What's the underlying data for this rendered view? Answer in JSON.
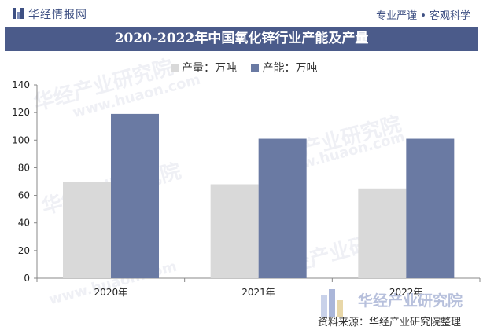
{
  "header": {
    "brand": "华经情报网",
    "tagline": "专业严谨 • 客观科学"
  },
  "chart_data": {
    "type": "bar",
    "title": "2020-2022年中国氧化锌行业产能及产量",
    "categories": [
      "2020年",
      "2021年",
      "2022年"
    ],
    "series": [
      {
        "name": "产量：万吨",
        "color": "#d9d9d9",
        "values": [
          70,
          68,
          65
        ]
      },
      {
        "name": "产能：万吨",
        "color": "#6a7aa3",
        "values": [
          119,
          101,
          101
        ]
      }
    ],
    "ylim": [
      0,
      140
    ],
    "yticks": [
      "0",
      "20",
      "40",
      "60",
      "80",
      "100",
      "120",
      "140"
    ],
    "legend_position": "top",
    "grid": false
  },
  "watermark": {
    "brand": "华经产业研究院",
    "url": "www.huaon.com"
  },
  "footer": {
    "brand": "华经产业研究院",
    "source": "资料来源：华经产业研究院整理"
  }
}
